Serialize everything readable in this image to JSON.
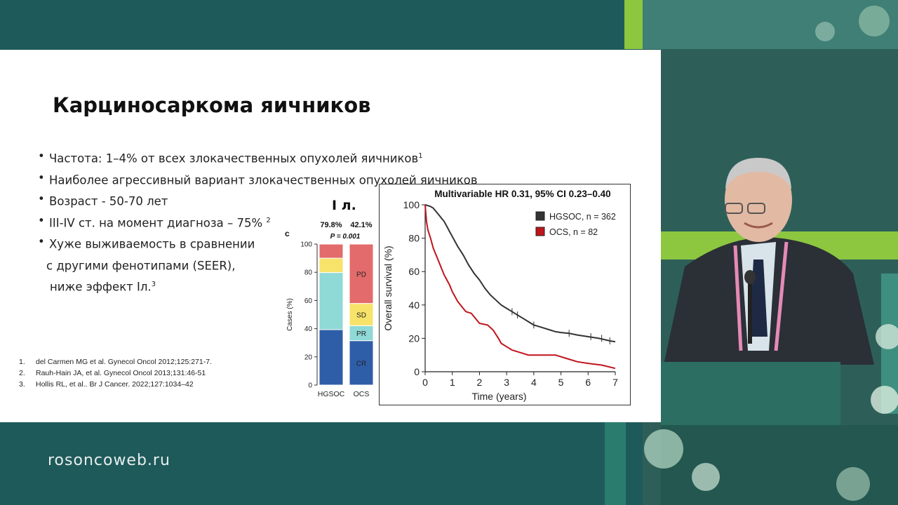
{
  "slide": {
    "title": "Карциносаркома яичников",
    "bullets": [
      {
        "text": "Частота: 1–4% от всех злокачественных опухолей яичников",
        "sup": "1"
      },
      {
        "text": "Наиболее агрессивный вариант злокачественных опухолей яичников",
        "sup": ""
      },
      {
        "text": "Возраст - 50-70 лет",
        "sup": ""
      },
      {
        "text": "III-IV ст. на момент диагноза – 75% ",
        "sup": "2"
      },
      {
        "text": "Хуже выживаемость в сравнении",
        "sup": ""
      }
    ],
    "bullet_continuation": [
      {
        "text": "с другими фенотипами (SEER),",
        "sup": ""
      },
      {
        "text": "ниже эффект Iл.",
        "sup": "3"
      }
    ],
    "references": [
      {
        "num": "1.",
        "text": "del Carmen MG et al. Gynecol Oncol 2012;125:271-7."
      },
      {
        "num": "2.",
        "text": "Rauh-Hain JA, et al.  Gynecol Oncol 2013;131:46-51"
      },
      {
        "num": "3.",
        "text": "Hollis RL, et al.. Br J Cancer. 2022;127:1034–42"
      }
    ],
    "stack_heading": "I л."
  },
  "footer": {
    "website": "rosoncoweb.ru"
  },
  "colors": {
    "dark_teal": "#1f5a5a",
    "green_accent": "#8dc63f",
    "cr": "#2f5ea8",
    "pr": "#8fd9d6",
    "sd": "#f7e36a",
    "pd": "#e36b6b",
    "hgsoc_line": "#333333",
    "ocs_line": "#c0141c"
  },
  "chart_data": [
    {
      "type": "bar",
      "stacked": true,
      "panel_label": "c",
      "categories": [
        "HGSOC",
        "OCS"
      ],
      "ylabel": "Cases (%)",
      "ylim": [
        0,
        100
      ],
      "yticks": [
        0,
        20,
        40,
        60,
        80,
        100
      ],
      "top_labels": [
        "79.8%",
        "42.1%"
      ],
      "p_value": "P = 0.001",
      "series": [
        {
          "name": "CR",
          "values": [
            39.3,
            31.5
          ]
        },
        {
          "name": "PR",
          "values": [
            40.5,
            10.6
          ]
        },
        {
          "name": "SD",
          "values": [
            10.2,
            15.8
          ]
        },
        {
          "name": "PD",
          "values": [
            10.0,
            42.1
          ]
        }
      ]
    },
    {
      "type": "line",
      "title": "Multivariable HR 0.31, 95% CI 0.23–0.40",
      "xlabel": "Time (years)",
      "ylabel": "Overall survival (%)",
      "xlim": [
        0,
        7
      ],
      "ylim": [
        0,
        100
      ],
      "xticks": [
        0,
        1,
        2,
        3,
        4,
        5,
        6,
        7
      ],
      "yticks": [
        0,
        20,
        40,
        60,
        80,
        100
      ],
      "legend_position": "top-right",
      "series": [
        {
          "name": "HGSOC",
          "legend": "HGSOC, n = 362",
          "points": [
            [
              0,
              100
            ],
            [
              0.1,
              99.5
            ],
            [
              0.2,
              99
            ],
            [
              0.3,
              98
            ],
            [
              0.4,
              96
            ],
            [
              0.5,
              94
            ],
            [
              0.6,
              92
            ],
            [
              0.7,
              90
            ],
            [
              0.8,
              87
            ],
            [
              0.9,
              84
            ],
            [
              1.0,
              81
            ],
            [
              1.1,
              78
            ],
            [
              1.2,
              75
            ],
            [
              1.4,
              70
            ],
            [
              1.6,
              64
            ],
            [
              1.8,
              59
            ],
            [
              2.0,
              55
            ],
            [
              2.2,
              50
            ],
            [
              2.4,
              46
            ],
            [
              2.6,
              43
            ],
            [
              2.8,
              40
            ],
            [
              3.0,
              38
            ],
            [
              3.2,
              36
            ],
            [
              3.4,
              34
            ],
            [
              3.6,
              32
            ],
            [
              3.8,
              30
            ],
            [
              4.0,
              28
            ],
            [
              4.2,
              27
            ],
            [
              4.4,
              26
            ],
            [
              4.6,
              25
            ],
            [
              4.8,
              24
            ],
            [
              5.0,
              23.5
            ],
            [
              5.3,
              23
            ],
            [
              5.6,
              22
            ],
            [
              6.0,
              21
            ],
            [
              6.4,
              20
            ],
            [
              6.8,
              18.5
            ],
            [
              7.0,
              18
            ]
          ]
        },
        {
          "name": "OCS",
          "legend": "OCS, n = 82",
          "points": [
            [
              0,
              100
            ],
            [
              0.05,
              90
            ],
            [
              0.1,
              85
            ],
            [
              0.2,
              80
            ],
            [
              0.3,
              74
            ],
            [
              0.4,
              70
            ],
            [
              0.5,
              66
            ],
            [
              0.6,
              62
            ],
            [
              0.7,
              58
            ],
            [
              0.8,
              55
            ],
            [
              0.9,
              52
            ],
            [
              1.0,
              48
            ],
            [
              1.1,
              45
            ],
            [
              1.2,
              42
            ],
            [
              1.3,
              40
            ],
            [
              1.4,
              38
            ],
            [
              1.5,
              36
            ],
            [
              1.7,
              35
            ],
            [
              1.9,
              31
            ],
            [
              2.0,
              29
            ],
            [
              2.3,
              28
            ],
            [
              2.5,
              25
            ],
            [
              2.7,
              20
            ],
            [
              2.8,
              17
            ],
            [
              3.0,
              15
            ],
            [
              3.2,
              13
            ],
            [
              3.4,
              12
            ],
            [
              3.6,
              11
            ],
            [
              3.8,
              10
            ],
            [
              4.0,
              10
            ],
            [
              4.4,
              10
            ],
            [
              4.8,
              10
            ],
            [
              5.2,
              8
            ],
            [
              5.6,
              6
            ],
            [
              6.0,
              5
            ],
            [
              6.5,
              4
            ],
            [
              7.0,
              2
            ]
          ]
        }
      ]
    }
  ]
}
